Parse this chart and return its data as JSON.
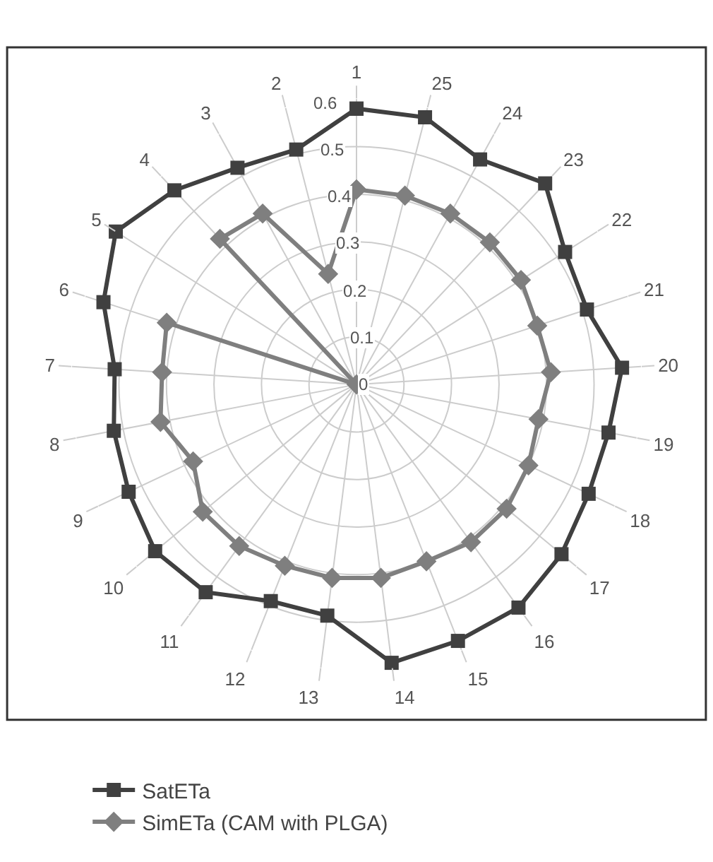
{
  "chart_data": {
    "type": "radar",
    "categories": [
      "1",
      "25",
      "24",
      "23",
      "22",
      "21",
      "20",
      "19",
      "18",
      "17",
      "16",
      "15",
      "14",
      "13",
      "12",
      "11",
      "10",
      "9",
      "8",
      "7",
      "6",
      "5",
      "4",
      "3",
      "2"
    ],
    "series": [
      {
        "name": "SatETa",
        "color": "#404040",
        "marker": "square",
        "values": [
          0.58,
          0.58,
          0.54,
          0.58,
          0.52,
          0.51,
          0.56,
          0.54,
          0.54,
          0.56,
          0.58,
          0.58,
          0.59,
          0.49,
          0.49,
          0.54,
          0.55,
          0.53,
          0.52,
          0.51,
          0.56,
          0.6,
          0.56,
          0.52,
          0.51
        ]
      },
      {
        "name": "SimETa (CAM with PLGA)",
        "color": "#7f7f7f",
        "marker": "diamond",
        "values": [
          0.41,
          0.41,
          0.41,
          0.41,
          0.41,
          0.4,
          0.41,
          0.39,
          0.4,
          0.41,
          0.41,
          0.4,
          0.41,
          0.41,
          0.41,
          0.42,
          0.42,
          0.38,
          0.42,
          0.41,
          0.42,
          0,
          0.42,
          0.41,
          0.24
        ]
      }
    ],
    "ylim": [
      0,
      0.6
    ],
    "yticks": [
      0,
      0.1,
      0.2,
      0.3,
      0.4,
      0.5,
      0.6
    ],
    "grid": true,
    "legend": "bottom"
  }
}
